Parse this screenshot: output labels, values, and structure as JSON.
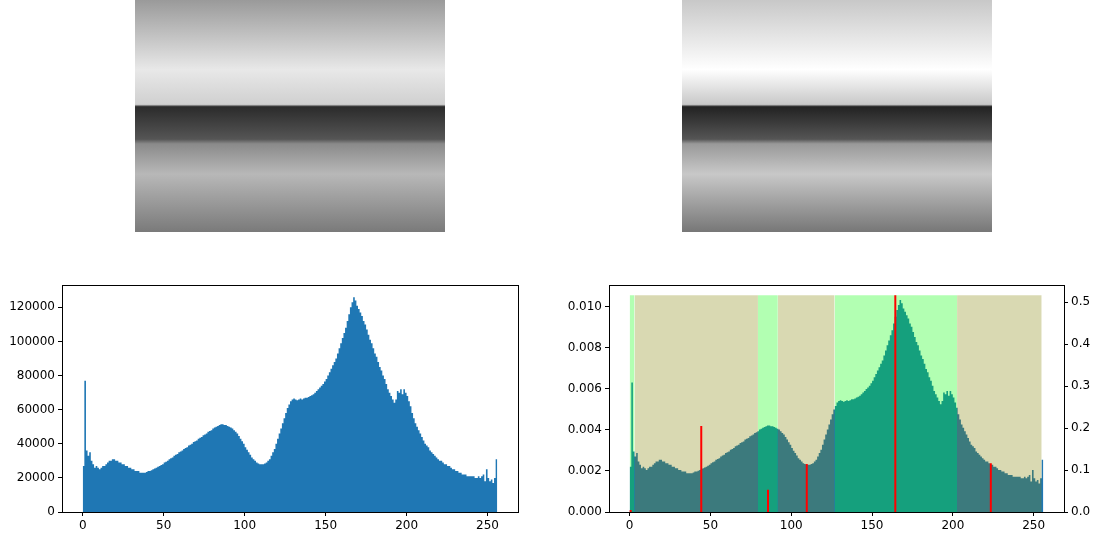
{
  "chart_data": [
    {
      "type": "histogram",
      "bins": [
        0,
        1,
        2,
        3,
        4,
        5,
        6,
        7,
        8,
        9,
        10,
        11,
        12,
        13,
        14,
        15,
        16,
        17,
        18,
        19,
        20,
        21,
        22,
        23,
        24,
        25,
        26,
        27,
        28,
        29,
        30,
        31,
        32,
        33,
        34,
        35,
        36,
        37,
        38,
        39,
        40,
        41,
        42,
        43,
        44,
        45,
        46,
        47,
        48,
        49,
        50,
        51,
        52,
        53,
        54,
        55,
        56,
        57,
        58,
        59,
        60,
        61,
        62,
        63,
        64,
        65,
        66,
        67,
        68,
        69,
        70,
        71,
        72,
        73,
        74,
        75,
        76,
        77,
        78,
        79,
        80,
        81,
        82,
        83,
        84,
        85,
        86,
        87,
        88,
        89,
        90,
        91,
        92,
        93,
        94,
        95,
        96,
        97,
        98,
        99,
        100,
        101,
        102,
        103,
        104,
        105,
        106,
        107,
        108,
        109,
        110,
        111,
        112,
        113,
        114,
        115,
        116,
        117,
        118,
        119,
        120,
        121,
        122,
        123,
        124,
        125,
        126,
        127,
        128,
        129,
        130,
        131,
        132,
        133,
        134,
        135,
        136,
        137,
        138,
        139,
        140,
        141,
        142,
        143,
        144,
        145,
        146,
        147,
        148,
        149,
        150,
        151,
        152,
        153,
        154,
        155,
        156,
        157,
        158,
        159,
        160,
        161,
        162,
        163,
        164,
        165,
        166,
        167,
        168,
        169,
        170,
        171,
        172,
        173,
        174,
        175,
        176,
        177,
        178,
        179,
        180,
        181,
        182,
        183,
        184,
        185,
        186,
        187,
        188,
        189,
        190,
        191,
        192,
        193,
        194,
        195,
        196,
        197,
        198,
        199,
        200,
        201,
        202,
        203,
        204,
        205,
        206,
        207,
        208,
        209,
        210,
        211,
        212,
        213,
        214,
        215,
        216,
        217,
        218,
        219,
        220,
        221,
        222,
        223,
        224,
        225,
        226,
        227,
        228,
        229,
        230,
        231,
        232,
        233,
        234,
        235,
        236,
        237,
        238,
        239,
        240,
        241,
        242,
        243,
        244,
        245,
        246,
        247,
        248,
        249,
        250,
        251,
        252,
        253,
        254,
        255,
        256
      ],
      "values": [
        27000,
        77000,
        36000,
        33000,
        35000,
        30000,
        28000,
        26000,
        27000,
        26000,
        25000,
        26000,
        27000,
        27000,
        28000,
        29000,
        30000,
        30000,
        31000,
        31000,
        30000,
        30000,
        29000,
        29000,
        28000,
        28000,
        27000,
        27000,
        26000,
        26000,
        25000,
        25000,
        24000,
        24000,
        24000,
        23000,
        23000,
        23000,
        23000,
        23500,
        24000,
        24000,
        24500,
        25000,
        25500,
        26000,
        26500,
        27000,
        27500,
        28000,
        29000,
        29500,
        30000,
        31000,
        31500,
        32000,
        33000,
        33500,
        34000,
        35000,
        35500,
        36000,
        37000,
        37500,
        38000,
        39000,
        39500,
        40000,
        41000,
        41500,
        42000,
        43000,
        43500,
        44000,
        45000,
        45500,
        46000,
        47000,
        47500,
        48000,
        49000,
        49500,
        50000,
        50500,
        51000,
        51500,
        51500,
        51000,
        51000,
        50500,
        50000,
        49500,
        49000,
        48000,
        47000,
        46000,
        44500,
        43000,
        41500,
        40000,
        38000,
        36500,
        35000,
        33500,
        32000,
        31000,
        30000,
        29000,
        28500,
        28000,
        28000,
        28000,
        28500,
        29000,
        30000,
        31000,
        33000,
        35000,
        37000,
        40000,
        43000,
        46000,
        49000,
        52000,
        55000,
        58000,
        61000,
        63000,
        65000,
        66000,
        66500,
        66000,
        65500,
        66000,
        66500,
        66000,
        66500,
        67000,
        67000,
        67500,
        68000,
        68500,
        69000,
        70000,
        71000,
        72000,
        73000,
        74000,
        75000,
        76500,
        78000,
        80000,
        82000,
        84000,
        86000,
        88000,
        90000,
        93000,
        96000,
        99000,
        102000,
        105000,
        108000,
        112000,
        116000,
        120000,
        123000,
        126000,
        124000,
        121000,
        119000,
        117000,
        115000,
        112000,
        110000,
        107000,
        104000,
        101000,
        99000,
        96000,
        93000,
        91000,
        88000,
        85000,
        83000,
        80000,
        78000,
        75000,
        72000,
        70000,
        68000,
        66000,
        64000,
        66000,
        71000,
        70000,
        72000,
        69000,
        72000,
        70000,
        68000,
        65000,
        62000,
        58000,
        55000,
        52000,
        50000,
        48000,
        46000,
        44000,
        42000,
        40000,
        39000,
        38000,
        36000,
        35000,
        34000,
        33000,
        32000,
        31000,
        30000,
        30000,
        29000,
        28000,
        28000,
        27000,
        27000,
        26000,
        25000,
        25000,
        24000,
        24000,
        23000,
        23000,
        22000,
        22000,
        22000,
        21000,
        21000,
        21000,
        21000,
        21000,
        20000,
        20000,
        21000,
        20000,
        21000,
        22000,
        18000,
        25000,
        20000,
        18000,
        19000,
        17000,
        20000,
        31000
      ],
      "color": "#1f77b4",
      "xlim": [
        -12.8,
        268.8
      ],
      "ylim": [
        0,
        133000
      ],
      "xticks": [
        0,
        50,
        100,
        150,
        200,
        250
      ],
      "yticks": [
        0,
        20000,
        40000,
        60000,
        80000,
        100000,
        120000
      ]
    },
    {
      "type": "histogram",
      "bins": [
        0,
        1,
        2,
        3,
        4,
        5,
        6,
        7,
        8,
        9,
        10,
        11,
        12,
        13,
        14,
        15,
        16,
        17,
        18,
        19,
        20,
        21,
        22,
        23,
        24,
        25,
        26,
        27,
        28,
        29,
        30,
        31,
        32,
        33,
        34,
        35,
        36,
        37,
        38,
        39,
        40,
        41,
        42,
        43,
        44,
        45,
        46,
        47,
        48,
        49,
        50,
        51,
        52,
        53,
        54,
        55,
        56,
        57,
        58,
        59,
        60,
        61,
        62,
        63,
        64,
        65,
        66,
        67,
        68,
        69,
        70,
        71,
        72,
        73,
        74,
        75,
        76,
        77,
        78,
        79,
        80,
        81,
        82,
        83,
        84,
        85,
        86,
        87,
        88,
        89,
        90,
        91,
        92,
        93,
        94,
        95,
        96,
        97,
        98,
        99,
        100,
        101,
        102,
        103,
        104,
        105,
        106,
        107,
        108,
        109,
        110,
        111,
        112,
        113,
        114,
        115,
        116,
        117,
        118,
        119,
        120,
        121,
        122,
        123,
        124,
        125,
        126,
        127,
        128,
        129,
        130,
        131,
        132,
        133,
        134,
        135,
        136,
        137,
        138,
        139,
        140,
        141,
        142,
        143,
        144,
        145,
        146,
        147,
        148,
        149,
        150,
        151,
        152,
        153,
        154,
        155,
        156,
        157,
        158,
        159,
        160,
        161,
        162,
        163,
        164,
        165,
        166,
        167,
        168,
        169,
        170,
        171,
        172,
        173,
        174,
        175,
        176,
        177,
        178,
        179,
        180,
        181,
        182,
        183,
        184,
        185,
        186,
        187,
        188,
        189,
        190,
        191,
        192,
        193,
        194,
        195,
        196,
        197,
        198,
        199,
        200,
        201,
        202,
        203,
        204,
        205,
        206,
        207,
        208,
        209,
        210,
        211,
        212,
        213,
        214,
        215,
        216,
        217,
        218,
        219,
        220,
        221,
        222,
        223,
        224,
        225,
        226,
        227,
        228,
        229,
        230,
        231,
        232,
        233,
        234,
        235,
        236,
        237,
        238,
        239,
        240,
        241,
        242,
        243,
        244,
        245,
        246,
        247,
        248,
        249,
        250,
        251,
        252,
        253,
        254,
        255,
        256
      ],
      "values": [
        0.00221,
        0.00631,
        0.00295,
        0.00271,
        0.00287,
        0.00246,
        0.0023,
        0.00213,
        0.00221,
        0.00213,
        0.00205,
        0.00213,
        0.00221,
        0.00221,
        0.0023,
        0.00238,
        0.00246,
        0.00246,
        0.00254,
        0.00254,
        0.00246,
        0.00246,
        0.00238,
        0.00238,
        0.0023,
        0.0023,
        0.00221,
        0.00221,
        0.00213,
        0.00213,
        0.00205,
        0.00205,
        0.00197,
        0.00197,
        0.00197,
        0.00189,
        0.00189,
        0.00189,
        0.00189,
        0.00193,
        0.00197,
        0.00197,
        0.00201,
        0.00205,
        0.00209,
        0.00213,
        0.00217,
        0.00221,
        0.00225,
        0.0023,
        0.00238,
        0.00242,
        0.00246,
        0.00254,
        0.00258,
        0.00262,
        0.00271,
        0.00275,
        0.00279,
        0.00287,
        0.00291,
        0.00295,
        0.00303,
        0.00307,
        0.00312,
        0.0032,
        0.00324,
        0.00328,
        0.00336,
        0.0034,
        0.00344,
        0.00353,
        0.00357,
        0.00361,
        0.00369,
        0.00373,
        0.00377,
        0.00385,
        0.00389,
        0.00394,
        0.00402,
        0.00406,
        0.0041,
        0.00414,
        0.00418,
        0.00422,
        0.00422,
        0.00418,
        0.00418,
        0.00414,
        0.0041,
        0.00406,
        0.00402,
        0.00394,
        0.00385,
        0.00377,
        0.00365,
        0.00353,
        0.0034,
        0.00328,
        0.00312,
        0.00299,
        0.00287,
        0.00275,
        0.00262,
        0.00254,
        0.00246,
        0.00238,
        0.00234,
        0.0023,
        0.0023,
        0.0023,
        0.00234,
        0.00238,
        0.00246,
        0.00254,
        0.00271,
        0.00287,
        0.00303,
        0.00328,
        0.00353,
        0.00377,
        0.00402,
        0.00426,
        0.00451,
        0.00476,
        0.005,
        0.00517,
        0.00533,
        0.00541,
        0.00545,
        0.00541,
        0.00537,
        0.00541,
        0.00545,
        0.00541,
        0.00545,
        0.00549,
        0.00549,
        0.00553,
        0.00558,
        0.00562,
        0.00566,
        0.00574,
        0.00582,
        0.0059,
        0.00599,
        0.00607,
        0.00615,
        0.00627,
        0.0064,
        0.00656,
        0.00672,
        0.00689,
        0.00705,
        0.00722,
        0.00738,
        0.00763,
        0.00787,
        0.00812,
        0.00836,
        0.00861,
        0.00886,
        0.00918,
        0.00951,
        0.00984,
        0.01009,
        0.01033,
        0.01017,
        0.00992,
        0.00976,
        0.00959,
        0.00943,
        0.00918,
        0.00902,
        0.00877,
        0.00853,
        0.00828,
        0.00812,
        0.00787,
        0.00763,
        0.00746,
        0.00722,
        0.00697,
        0.00681,
        0.00656,
        0.0064,
        0.00615,
        0.0059,
        0.00574,
        0.00558,
        0.00541,
        0.00525,
        0.00541,
        0.00582,
        0.00574,
        0.0059,
        0.00566,
        0.0059,
        0.00574,
        0.00558,
        0.00533,
        0.00508,
        0.00476,
        0.00451,
        0.00426,
        0.0041,
        0.00394,
        0.00377,
        0.00361,
        0.00344,
        0.00328,
        0.0032,
        0.00312,
        0.00295,
        0.00287,
        0.00279,
        0.00271,
        0.00262,
        0.00254,
        0.00246,
        0.00246,
        0.00238,
        0.0023,
        0.0023,
        0.00221,
        0.00221,
        0.00213,
        0.00205,
        0.00205,
        0.00197,
        0.00197,
        0.00189,
        0.00189,
        0.0018,
        0.0018,
        0.0018,
        0.00172,
        0.00172,
        0.00172,
        0.00172,
        0.00172,
        0.00164,
        0.00164,
        0.00172,
        0.00164,
        0.00172,
        0.0018,
        0.00148,
        0.00205,
        0.00164,
        0.00148,
        0.00156,
        0.00139,
        0.00164,
        0.00254
      ],
      "color": "#1f77b4",
      "xlim": [
        -12.8,
        268.8
      ],
      "ylim": [
        0,
        0.01105
      ],
      "xticks": [
        0,
        50,
        100,
        150,
        200,
        250
      ],
      "yticks": [
        {
          "value": 0,
          "label": "0.000"
        },
        {
          "value": 0.002,
          "label": "0.002"
        },
        {
          "value": 0.004,
          "label": "0.004"
        },
        {
          "value": 0.006,
          "label": "0.006"
        },
        {
          "value": 0.008,
          "label": "0.008"
        },
        {
          "value": 0.01,
          "label": "0.010"
        }
      ],
      "y2lim": [
        0,
        0.54
      ],
      "y2ticks": [
        {
          "value": 0,
          "label": "0.0"
        },
        0.1,
        0.2,
        0.3,
        0.4,
        0.5
      ],
      "series": [
        {
          "type": "area",
          "axis": "y2",
          "color": "lime",
          "x": [
            0,
            3
          ],
          "values": [
            0.516,
            0.516
          ]
        },
        {
          "type": "area",
          "axis": "y2",
          "color": "olive",
          "x": [
            3,
            79.4
          ],
          "values": [
            0.516,
            0.516
          ]
        },
        {
          "type": "area",
          "axis": "y2",
          "color": "lime",
          "x": [
            79.4,
            91.7
          ],
          "values": [
            0.516,
            0.516
          ]
        },
        {
          "type": "area",
          "axis": "y2",
          "color": "olive",
          "x": [
            91.7,
            126.8
          ],
          "values": [
            0.516,
            0.516
          ]
        },
        {
          "type": "area",
          "axis": "y2",
          "color": "lime",
          "x": [
            126.8,
            202.6
          ],
          "values": [
            0.516,
            0.516
          ]
        },
        {
          "type": "area",
          "axis": "y2",
          "color": "olive",
          "x": [
            202.6,
            255
          ],
          "values": [
            0.516,
            0.516
          ]
        },
        {
          "type": "stem",
          "axis": "y2",
          "color": "red",
          "x": [
            0.6,
            44.3,
            85.6,
            109.6,
            164.4,
            223.5
          ],
          "values": [
            0.005,
            0.205,
            0.053,
            0.114,
            0.516,
            0.116
          ]
        }
      ]
    }
  ]
}
